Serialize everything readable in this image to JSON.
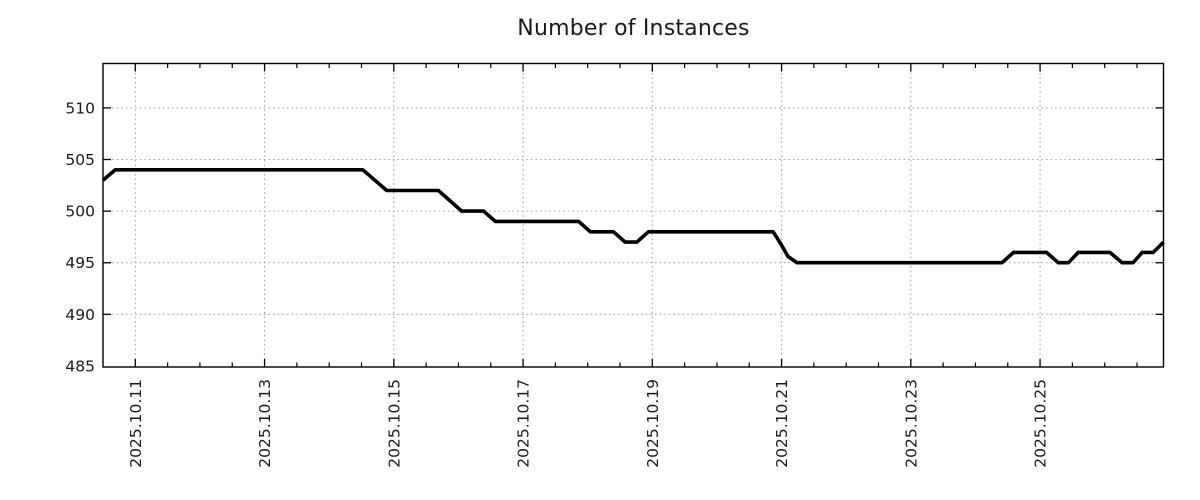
{
  "page_background": "#ffffff",
  "chart_data": {
    "type": "line",
    "title": "Number of Instances",
    "legend": {
      "show": false
    },
    "grid": {
      "show": true,
      "style": "dotted"
    },
    "x_axis": {
      "unit": "days since 2025.10.11 00:00",
      "tick_labels": [
        "2025.10.11",
        "2025.10.13",
        "2025.10.15",
        "2025.10.17",
        "2025.10.19",
        "2025.10.21",
        "2025.10.23",
        "2025.10.25"
      ],
      "tick_positions_days": [
        0,
        2,
        4,
        6,
        8,
        10,
        12,
        14
      ],
      "minor_tick_step_days": 0.5,
      "xlim_days": [
        -0.5,
        15.91
      ]
    },
    "y_axis": {
      "ticks": [
        485,
        490,
        495,
        500,
        505,
        510
      ],
      "tick_labels": [
        "485",
        "490",
        "495",
        "500",
        "505",
        "510"
      ],
      "ylim": [
        484.9,
        514.3
      ],
      "minor_ticks": false
    },
    "styles": {
      "line_color": "#000000",
      "line_width": 3.6,
      "grid_color": "#a8a8a8",
      "spine_color": "#000000",
      "text_color": "#1a1a1a",
      "background": "#ffffff"
    },
    "series": [
      {
        "name": "Number of Instances",
        "points": [
          [
            -0.5,
            503
          ],
          [
            -0.31,
            504
          ],
          [
            3.52,
            504
          ],
          [
            3.89,
            502
          ],
          [
            4.69,
            502
          ],
          [
            5.05,
            500
          ],
          [
            5.39,
            500
          ],
          [
            5.57,
            499
          ],
          [
            6.86,
            499
          ],
          [
            7.04,
            498
          ],
          [
            7.4,
            498
          ],
          [
            7.58,
            497
          ],
          [
            7.76,
            497
          ],
          [
            7.94,
            498
          ],
          [
            9.87,
            498
          ],
          [
            10.0,
            496.7
          ],
          [
            10.1,
            495.6
          ],
          [
            10.24,
            495
          ],
          [
            13.41,
            495
          ],
          [
            13.59,
            496
          ],
          [
            14.1,
            496
          ],
          [
            14.28,
            495
          ],
          [
            14.44,
            495
          ],
          [
            14.59,
            496
          ],
          [
            15.08,
            496
          ],
          [
            15.27,
            495
          ],
          [
            15.44,
            495
          ],
          [
            15.58,
            496
          ],
          [
            15.75,
            496
          ],
          [
            15.91,
            497
          ]
        ]
      }
    ]
  }
}
